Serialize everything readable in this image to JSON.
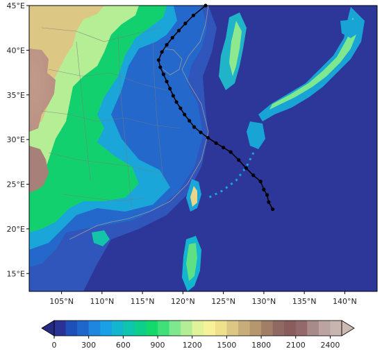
{
  "map": {
    "lon_range": [
      101,
      144
    ],
    "lat_range": [
      13,
      45
    ],
    "x_tick_labels": [
      "105°N",
      "110°N",
      "115°N",
      "120°N",
      "125°N",
      "130°N",
      "135°N",
      "140°N"
    ],
    "y_tick_labels": [
      "15°E",
      "20°E",
      "25°E",
      "30°E",
      "35°E",
      "40°E",
      "45°E"
    ],
    "ocean_color": "#2d3799",
    "track": {
      "line_color": "#000000",
      "points": [
        {
          "lon": 131.1,
          "lat": 22.2
        },
        {
          "lon": 130.6,
          "lat": 23.0
        },
        {
          "lon": 130.4,
          "lat": 23.8
        },
        {
          "lon": 130.0,
          "lat": 24.4
        },
        {
          "lon": 129.6,
          "lat": 25.3
        },
        {
          "lon": 128.7,
          "lat": 26.0
        },
        {
          "lon": 127.8,
          "lat": 26.8
        },
        {
          "lon": 126.9,
          "lat": 27.7
        },
        {
          "lon": 125.9,
          "lat": 28.6
        },
        {
          "lon": 125.0,
          "lat": 29.1
        },
        {
          "lon": 124.1,
          "lat": 29.6
        },
        {
          "lon": 123.1,
          "lat": 30.2
        },
        {
          "lon": 122.2,
          "lat": 30.8
        },
        {
          "lon": 121.4,
          "lat": 31.4
        },
        {
          "lon": 120.8,
          "lat": 32.1
        },
        {
          "lon": 120.2,
          "lat": 32.8
        },
        {
          "lon": 119.7,
          "lat": 33.5
        },
        {
          "lon": 119.2,
          "lat": 34.2
        },
        {
          "lon": 118.8,
          "lat": 34.9
        },
        {
          "lon": 118.4,
          "lat": 35.7
        },
        {
          "lon": 118.0,
          "lat": 36.5
        },
        {
          "lon": 117.6,
          "lat": 37.3
        },
        {
          "lon": 117.2,
          "lat": 38.1
        },
        {
          "lon": 117.0,
          "lat": 38.9
        },
        {
          "lon": 117.4,
          "lat": 39.8
        },
        {
          "lon": 118.0,
          "lat": 40.6
        },
        {
          "lon": 118.7,
          "lat": 41.4
        },
        {
          "lon": 119.5,
          "lat": 42.2
        },
        {
          "lon": 120.3,
          "lat": 43.0
        },
        {
          "lon": 121.3,
          "lat": 43.9
        },
        {
          "lon": 122.8,
          "lat": 45.0
        }
      ]
    }
  },
  "colorbar": {
    "min": 0,
    "max": 2500,
    "tick_values": [
      0,
      300,
      600,
      900,
      1200,
      1500,
      1800,
      2100,
      2400
    ],
    "tick_labels": [
      "0",
      "300",
      "600",
      "900",
      "1200",
      "1500",
      "1800",
      "2100",
      "2400"
    ],
    "colors": [
      "#2b3296",
      "#1f4fb8",
      "#2067cc",
      "#1f86e0",
      "#1aa0e6",
      "#14b5cf",
      "#10c4ad",
      "#0ecf8a",
      "#13d86b",
      "#3fe07a",
      "#7de890",
      "#b3ee96",
      "#e0f39a",
      "#f7f19a",
      "#efe08c",
      "#dcc784",
      "#c7ad79",
      "#b4966f",
      "#a17f67",
      "#8f6962",
      "#8a5c5c",
      "#94696b",
      "#a78a8a",
      "#baa3a0",
      "#c9b5b0"
    ]
  }
}
